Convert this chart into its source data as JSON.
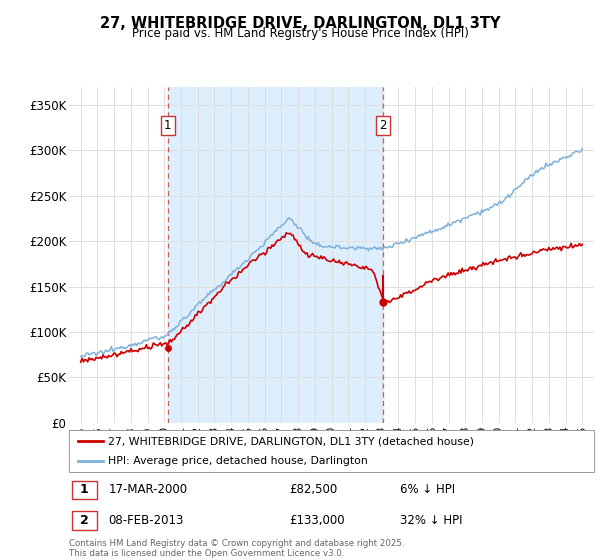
{
  "title": "27, WHITEBRIDGE DRIVE, DARLINGTON, DL1 3TY",
  "subtitle": "Price paid vs. HM Land Registry's House Price Index (HPI)",
  "background_color": "#ffffff",
  "plot_bg_color": "#ffffff",
  "shade_color": "#ddeeff",
  "grid_color": "#dddddd",
  "ylim": [
    0,
    370000
  ],
  "yticks": [
    0,
    50000,
    100000,
    150000,
    200000,
    250000,
    300000,
    350000
  ],
  "ytick_labels": [
    "£0",
    "£50K",
    "£100K",
    "£150K",
    "£200K",
    "£250K",
    "£300K",
    "£350K"
  ],
  "xlim_left": 1994.3,
  "xlim_right": 2025.7,
  "sale1_date_x": 2000.21,
  "sale1_price": 82500,
  "sale1_label": "1",
  "sale1_date_str": "17-MAR-2000",
  "sale1_amount_str": "£82,500",
  "sale1_pct_str": "6% ↓ HPI",
  "sale2_date_x": 2013.1,
  "sale2_price": 133000,
  "sale2_label": "2",
  "sale2_date_str": "08-FEB-2013",
  "sale2_amount_str": "£133,000",
  "sale2_pct_str": "32% ↓ HPI",
  "red_line_color": "#cc0000",
  "blue_line_color": "#7fb0d8",
  "vline_color": "#cc4444",
  "legend_red_label": "27, WHITEBRIDGE DRIVE, DARLINGTON, DL1 3TY (detached house)",
  "legend_blue_label": "HPI: Average price, detached house, Darlington",
  "footer": "Contains HM Land Registry data © Crown copyright and database right 2025.\nThis data is licensed under the Open Government Licence v3.0."
}
